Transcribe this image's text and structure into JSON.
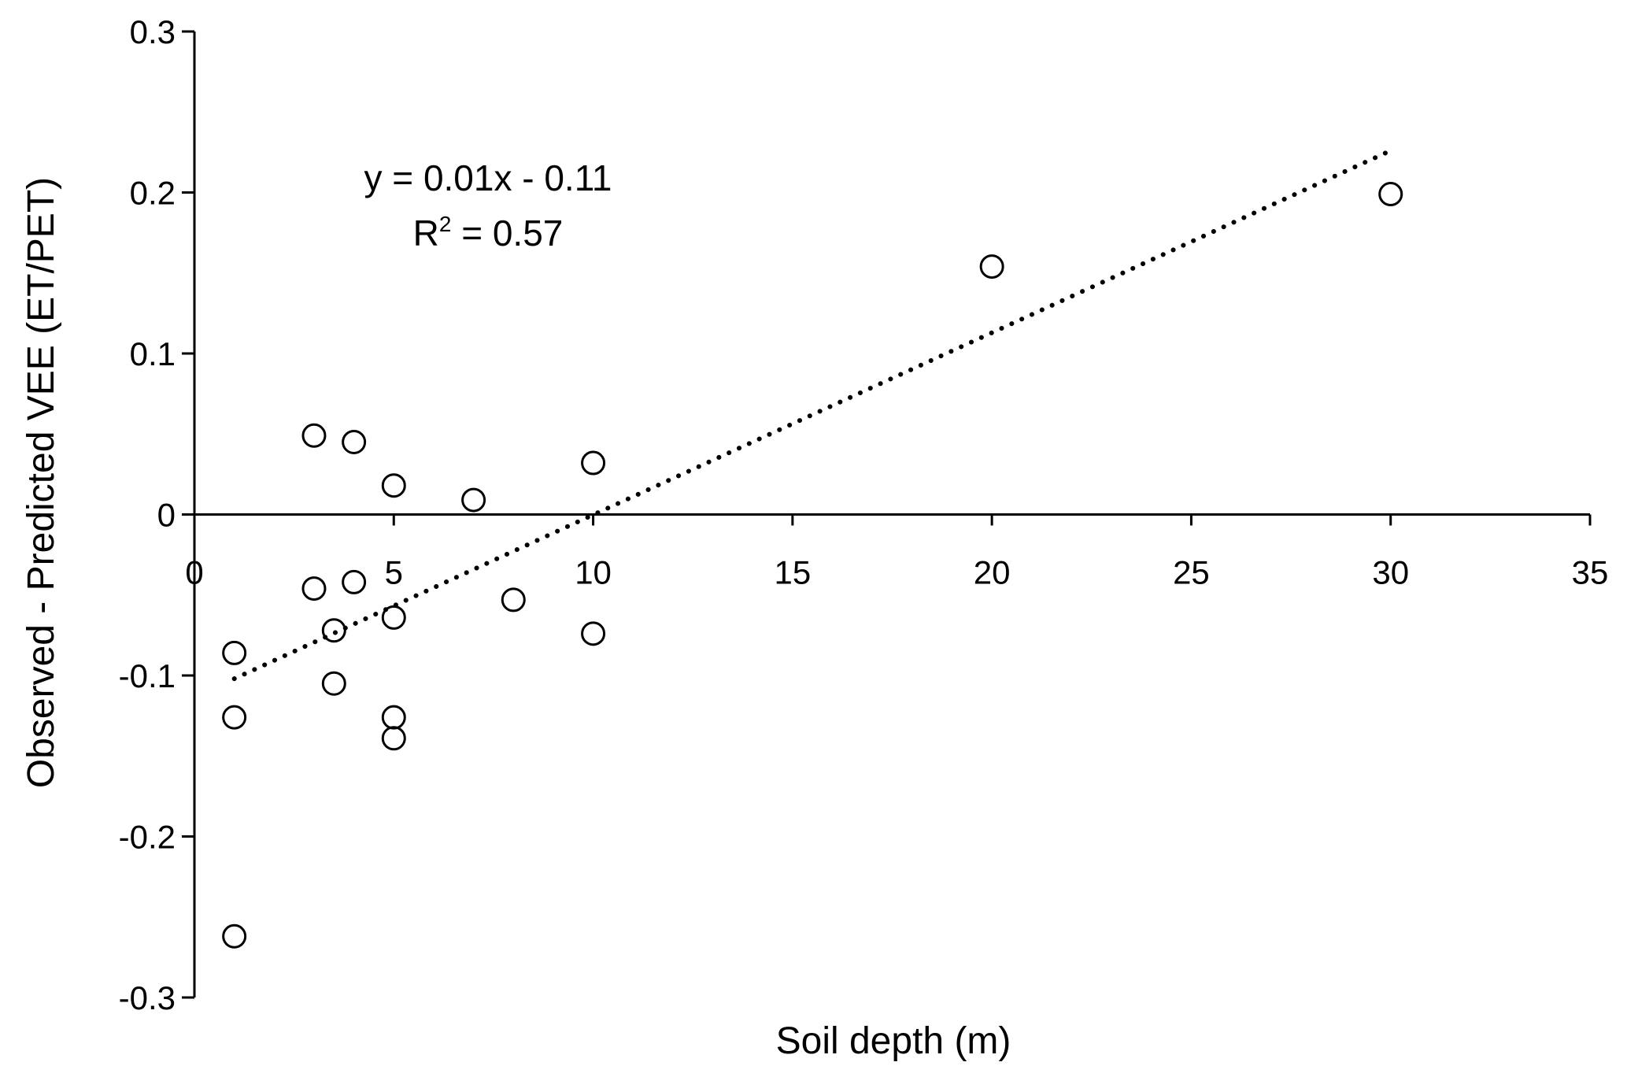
{
  "chart_data": {
    "type": "scatter",
    "xlabel": "Soil depth (m)",
    "ylabel": "Observed - Predicted VEE  (ET/PET)",
    "xlim": [
      0,
      35
    ],
    "ylim": [
      -0.3,
      0.3
    ],
    "x_ticks": [
      0,
      5,
      10,
      15,
      20,
      25,
      30,
      35
    ],
    "x_tick_labels": [
      "0",
      "5",
      "10",
      "15",
      "20",
      "25",
      "30",
      "35"
    ],
    "y_ticks": [
      -0.3,
      -0.2,
      -0.1,
      0,
      0.1,
      0.2,
      0.3
    ],
    "y_tick_labels": [
      "-0.3",
      "-0.2",
      "-0.1",
      "0",
      "0.1",
      "0.2",
      "0.3"
    ],
    "grid": false,
    "marker": "open-circle",
    "series": [
      {
        "points": [
          {
            "x": 1,
            "y": -0.086
          },
          {
            "x": 1,
            "y": -0.126
          },
          {
            "x": 1,
            "y": -0.262
          },
          {
            "x": 3,
            "y": 0.049
          },
          {
            "x": 3,
            "y": -0.046
          },
          {
            "x": 3.5,
            "y": -0.072
          },
          {
            "x": 3.5,
            "y": -0.105
          },
          {
            "x": 4,
            "y": 0.045
          },
          {
            "x": 4,
            "y": -0.042
          },
          {
            "x": 5,
            "y": 0.018
          },
          {
            "x": 5,
            "y": -0.064
          },
          {
            "x": 5,
            "y": -0.126
          },
          {
            "x": 5,
            "y": -0.139
          },
          {
            "x": 7,
            "y": 0.009
          },
          {
            "x": 8,
            "y": -0.053
          },
          {
            "x": 10,
            "y": 0.032
          },
          {
            "x": 10,
            "y": -0.074
          },
          {
            "x": 20,
            "y": 0.154
          },
          {
            "x": 30,
            "y": 0.199
          }
        ]
      }
    ],
    "trendline": {
      "style": "dotted",
      "x_range": [
        1,
        30
      ],
      "y_range": [
        -0.102,
        0.226
      ]
    },
    "annotations": {
      "equation": "y = 0.01x - 0.11",
      "r_squared_prefix": "R",
      "r_squared_sup": "2",
      "r_squared_suffix": " = 0.57"
    }
  }
}
